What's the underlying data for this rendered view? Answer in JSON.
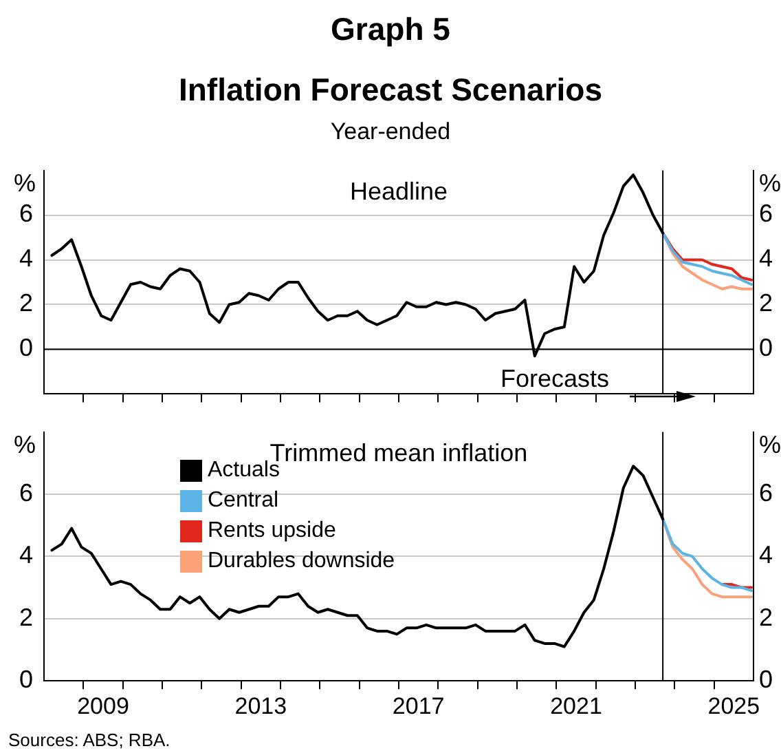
{
  "chart_data": [
    {
      "type": "line",
      "title": "Headline",
      "ylabel": "%",
      "y2label": "%",
      "annotations": [
        "Graph 5",
        "Inflation Forecast Scenarios",
        "Year-ended",
        "Forecasts"
      ],
      "series": [
        {
          "color": "#000000",
          "x": [
            2008.2,
            2008.45,
            2008.7,
            2008.95,
            2009.2,
            2009.45,
            2009.7,
            2009.95,
            2010.2,
            2010.45,
            2010.7,
            2010.95,
            2011.2,
            2011.45,
            2011.7,
            2011.95,
            2012.2,
            2012.45,
            2012.7,
            2012.95,
            2013.2,
            2013.45,
            2013.7,
            2013.95,
            2014.2,
            2014.45,
            2014.7,
            2014.95,
            2015.2,
            2015.45,
            2015.7,
            2015.95,
            2016.2,
            2016.45,
            2016.7,
            2016.95,
            2017.2,
            2017.45,
            2017.7,
            2017.95,
            2018.2,
            2018.45,
            2018.7,
            2018.95,
            2019.2,
            2019.45,
            2019.7,
            2019.95,
            2020.2,
            2020.45,
            2020.7,
            2020.95,
            2021.2,
            2021.45,
            2021.7,
            2021.95,
            2022.2,
            2022.45,
            2022.7,
            2022.95,
            2023.2,
            2023.45,
            2023.7
          ],
          "values": [
            4.2,
            4.5,
            4.9,
            3.7,
            2.4,
            1.5,
            1.3,
            2.1,
            2.9,
            3.0,
            2.8,
            2.7,
            3.3,
            3.6,
            3.5,
            3.0,
            1.6,
            1.2,
            2.0,
            2.1,
            2.5,
            2.4,
            2.2,
            2.7,
            3.0,
            3.0,
            2.3,
            1.7,
            1.3,
            1.5,
            1.5,
            1.7,
            1.3,
            1.1,
            1.3,
            1.5,
            2.1,
            1.9,
            1.9,
            2.1,
            2.0,
            2.1,
            2.0,
            1.8,
            1.3,
            1.6,
            1.7,
            1.8,
            2.2,
            -0.3,
            0.7,
            0.9,
            1.0,
            3.7,
            3.0,
            3.5,
            5.1,
            6.1,
            7.3,
            7.8,
            7.0,
            6.0,
            5.2
          ]
        },
        {
          "color": "#5bb4e5",
          "x": [
            2023.7,
            2023.95,
            2024.2,
            2024.45,
            2024.7,
            2024.95,
            2025.2,
            2025.45,
            2025.7,
            2025.95
          ],
          "values": [
            5.2,
            4.4,
            3.9,
            3.8,
            3.7,
            3.5,
            3.4,
            3.3,
            3.1,
            2.9
          ]
        },
        {
          "color": "#e0281e",
          "x": [
            2023.7,
            2023.95,
            2024.2,
            2024.45,
            2024.7,
            2024.95,
            2025.2,
            2025.45,
            2025.7,
            2025.95
          ],
          "values": [
            5.2,
            4.5,
            4.0,
            4.0,
            4.0,
            3.8,
            3.7,
            3.6,
            3.2,
            3.1
          ]
        },
        {
          "color": "#f9a27a",
          "x": [
            2023.7,
            2023.95,
            2024.2,
            2024.45,
            2024.7,
            2024.95,
            2025.2,
            2025.45,
            2025.7,
            2025.95
          ],
          "values": [
            5.2,
            4.3,
            3.7,
            3.4,
            3.1,
            2.9,
            2.7,
            2.8,
            2.7,
            2.7
          ]
        }
      ],
      "xlim": [
        2008,
        2026
      ],
      "xticks": [
        {
          "value": 2009,
          "label": null
        },
        {
          "value": 2010,
          "label": null
        },
        {
          "value": 2011,
          "label": null
        },
        {
          "value": 2012,
          "label": null
        },
        {
          "value": 2013,
          "label": null
        },
        {
          "value": 2014,
          "label": null
        },
        {
          "value": 2015,
          "label": null
        },
        {
          "value": 2016,
          "label": null
        },
        {
          "value": 2017,
          "label": null
        },
        {
          "value": 2018,
          "label": null
        },
        {
          "value": 2019,
          "label": null
        },
        {
          "value": 2020,
          "label": null
        },
        {
          "value": 2021,
          "label": null
        },
        {
          "value": 2022,
          "label": null
        },
        {
          "value": 2023,
          "label": null
        },
        {
          "value": 2024,
          "label": null
        },
        {
          "value": 2025,
          "label": null
        }
      ],
      "ylim": [
        -2,
        8
      ],
      "yticks": [
        0,
        2,
        4,
        6
      ],
      "y2lim": [
        -2,
        8
      ],
      "y2ticks": [
        0,
        2,
        4,
        6
      ],
      "grid": "y",
      "tick_labels": "y",
      "ref_lines": [
        {
          "axis": "x",
          "value": 2023.7,
          "color": "#000000"
        },
        {
          "axis": "y",
          "value": 0,
          "color": "#000000"
        }
      ]
    },
    {
      "type": "line",
      "title": "Trimmed mean inflation",
      "ylabel": "%",
      "y2label": "%",
      "annotations": [
        "Sources: ABS; RBA."
      ],
      "series": [
        {
          "name": "Actuals",
          "color": "#000000",
          "x": [
            2008.2,
            2008.45,
            2008.7,
            2008.95,
            2009.2,
            2009.45,
            2009.7,
            2009.95,
            2010.2,
            2010.45,
            2010.7,
            2010.95,
            2011.2,
            2011.45,
            2011.7,
            2011.95,
            2012.2,
            2012.45,
            2012.7,
            2012.95,
            2013.2,
            2013.45,
            2013.7,
            2013.95,
            2014.2,
            2014.45,
            2014.7,
            2014.95,
            2015.2,
            2015.45,
            2015.7,
            2015.95,
            2016.2,
            2016.45,
            2016.7,
            2016.95,
            2017.2,
            2017.45,
            2017.7,
            2017.95,
            2018.2,
            2018.45,
            2018.7,
            2018.95,
            2019.2,
            2019.45,
            2019.7,
            2019.95,
            2020.2,
            2020.45,
            2020.7,
            2020.95,
            2021.2,
            2021.45,
            2021.7,
            2021.95,
            2022.2,
            2022.45,
            2022.7,
            2022.95,
            2023.2,
            2023.45,
            2023.7
          ],
          "values": [
            4.2,
            4.4,
            4.9,
            4.3,
            4.1,
            3.6,
            3.1,
            3.2,
            3.1,
            2.8,
            2.6,
            2.3,
            2.3,
            2.7,
            2.5,
            2.7,
            2.3,
            2.0,
            2.3,
            2.2,
            2.3,
            2.4,
            2.4,
            2.7,
            2.7,
            2.8,
            2.4,
            2.2,
            2.3,
            2.2,
            2.1,
            2.1,
            1.7,
            1.6,
            1.6,
            1.5,
            1.7,
            1.7,
            1.8,
            1.7,
            1.7,
            1.7,
            1.7,
            1.8,
            1.6,
            1.6,
            1.6,
            1.6,
            1.8,
            1.3,
            1.2,
            1.2,
            1.1,
            1.6,
            2.2,
            2.6,
            3.6,
            4.8,
            6.2,
            6.9,
            6.6,
            5.9,
            5.2
          ]
        },
        {
          "name": "Central",
          "color": "#5bb4e5",
          "x": [
            2023.7,
            2023.95,
            2024.2,
            2024.45,
            2024.7,
            2024.95,
            2025.2,
            2025.45,
            2025.7,
            2025.95
          ],
          "values": [
            5.2,
            4.4,
            4.1,
            4.0,
            3.6,
            3.3,
            3.1,
            3.0,
            3.0,
            2.9
          ]
        },
        {
          "name": "Rents upside",
          "color": "#e0281e",
          "x": [
            2025.2,
            2025.45,
            2025.7,
            2025.95
          ],
          "values": [
            3.1,
            3.1,
            3.0,
            3.0
          ]
        },
        {
          "name": "Durables downside",
          "color": "#f9a27a",
          "x": [
            2023.7,
            2023.95,
            2024.2,
            2024.45,
            2024.7,
            2024.95,
            2025.2,
            2025.45,
            2025.7,
            2025.95
          ],
          "values": [
            5.2,
            4.3,
            3.9,
            3.6,
            3.1,
            2.8,
            2.7,
            2.7,
            2.7,
            2.7
          ]
        }
      ],
      "xlim": [
        2008,
        2026
      ],
      "xticks": [
        {
          "value": 2009,
          "label": null
        },
        {
          "value": 2009.5,
          "label": "2009"
        },
        {
          "value": 2010,
          "label": null
        },
        {
          "value": 2011,
          "label": null
        },
        {
          "value": 2012,
          "label": null
        },
        {
          "value": 2013,
          "label": null
        },
        {
          "value": 2013.5,
          "label": "2013"
        },
        {
          "value": 2014,
          "label": null
        },
        {
          "value": 2015,
          "label": null
        },
        {
          "value": 2016,
          "label": null
        },
        {
          "value": 2017,
          "label": null
        },
        {
          "value": 2017.5,
          "label": "2017"
        },
        {
          "value": 2018,
          "label": null
        },
        {
          "value": 2019,
          "label": null
        },
        {
          "value": 2020,
          "label": null
        },
        {
          "value": 2021,
          "label": null
        },
        {
          "value": 2021.5,
          "label": "2021"
        },
        {
          "value": 2022,
          "label": null
        },
        {
          "value": 2023,
          "label": null
        },
        {
          "value": 2024,
          "label": null
        },
        {
          "value": 2025,
          "label": null
        },
        {
          "value": 2025.5,
          "label": "2025"
        }
      ],
      "ylim": [
        0,
        8
      ],
      "yticks": [
        0,
        2,
        4,
        6
      ],
      "y2lim": [
        0,
        8
      ],
      "y2ticks": [
        0,
        2,
        4,
        6
      ],
      "grid": "y",
      "legend": "top left",
      "ref_lines": [
        {
          "axis": "x",
          "value": 2023.7,
          "color": "#000000"
        }
      ]
    }
  ]
}
